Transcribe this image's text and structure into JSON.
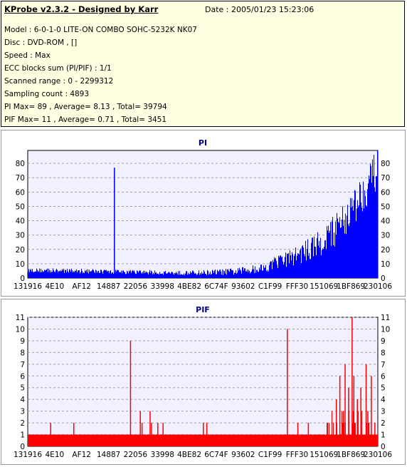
{
  "app": {
    "title": "KProbe v2.3.2 - Designed by Karr",
    "date": "Date : 2005/01/23 15:23:06"
  },
  "info_lines": [
    "Model : 6-0-1-0 LITE-ON COMBO SOHC-5232K NK07",
    "Disc : DVD-ROM ,  []",
    "Speed : Max",
    "ECC blocks sum (PI/PIF) : 1/1",
    "Scanned range : 0 - 2299312",
    "Sampling count : 4893",
    "PI Max= 89 , Average= 8.13 , Total= 39794",
    "PIF Max= 11 , Average= 0.71 , Total= 3451"
  ],
  "colors": {
    "pi_bar": "#0000ff",
    "pif_bar": "#ff0000",
    "plot_bg": "#f0f0ff",
    "grid": "#a0a0a0",
    "title_text": "#000080",
    "info_bg": "#ffffe1"
  },
  "chart_data": [
    {
      "type": "bar",
      "title": "PI",
      "xlabel": "",
      "ylabel": "",
      "x_tick_labels": [
        "131916",
        "4E10",
        "AF12",
        "14887",
        "22056",
        "33998",
        "4BE82",
        "6C74F",
        "93602",
        "C1F99",
        "FFF30",
        "151069",
        "1BF869",
        "230106"
      ],
      "y_ticks": [
        0,
        10,
        20,
        30,
        40,
        50,
        60,
        70,
        80
      ],
      "ylim": [
        0,
        89
      ],
      "grid": true,
      "right_axis": true,
      "spikes": [
        {
          "position_fraction": 0.246,
          "value": 77
        }
      ],
      "profile": [
        {
          "fraction": 0.0,
          "base": 4,
          "peak": 7
        },
        {
          "fraction": 0.2,
          "base": 3,
          "peak": 6
        },
        {
          "fraction": 0.45,
          "base": 2,
          "peak": 5
        },
        {
          "fraction": 0.6,
          "base": 2,
          "peak": 7
        },
        {
          "fraction": 0.68,
          "base": 4,
          "peak": 11
        },
        {
          "fraction": 0.75,
          "base": 8,
          "peak": 20
        },
        {
          "fraction": 0.82,
          "base": 13,
          "peak": 30
        },
        {
          "fraction": 0.88,
          "base": 22,
          "peak": 45
        },
        {
          "fraction": 0.93,
          "base": 35,
          "peak": 62
        },
        {
          "fraction": 0.97,
          "base": 50,
          "peak": 80
        },
        {
          "fraction": 1.0,
          "base": 62,
          "peak": 89
        }
      ]
    },
    {
      "type": "bar",
      "title": "PIF",
      "xlabel": "",
      "ylabel": "",
      "x_tick_labels": [
        "131916",
        "4E10",
        "AF12",
        "14887",
        "22056",
        "33998",
        "4BE82",
        "6C74F",
        "93602",
        "C1F99",
        "FFF30",
        "151069",
        "1BF869",
        "230106"
      ],
      "y_ticks": [
        0,
        1,
        2,
        3,
        4,
        5,
        6,
        7,
        8,
        9,
        10,
        11
      ],
      "ylim": [
        0,
        11
      ],
      "grid": true,
      "right_axis": true,
      "baseline_value": 1,
      "spikes": [
        {
          "position_fraction": 0.064,
          "value": 2
        },
        {
          "position_fraction": 0.13,
          "value": 2
        },
        {
          "position_fraction": 0.292,
          "value": 9
        },
        {
          "position_fraction": 0.32,
          "value": 3
        },
        {
          "position_fraction": 0.325,
          "value": 2
        },
        {
          "position_fraction": 0.348,
          "value": 3
        },
        {
          "position_fraction": 0.352,
          "value": 2
        },
        {
          "position_fraction": 0.37,
          "value": 2
        },
        {
          "position_fraction": 0.385,
          "value": 2
        },
        {
          "position_fraction": 0.5,
          "value": 2
        },
        {
          "position_fraction": 0.51,
          "value": 2
        },
        {
          "position_fraction": 0.74,
          "value": 10
        },
        {
          "position_fraction": 0.77,
          "value": 2
        },
        {
          "position_fraction": 0.8,
          "value": 2
        },
        {
          "position_fraction": 0.88,
          "value": 4
        },
        {
          "position_fraction": 0.89,
          "value": 6
        },
        {
          "position_fraction": 0.9,
          "value": 3
        },
        {
          "position_fraction": 0.905,
          "value": 7
        },
        {
          "position_fraction": 0.915,
          "value": 5
        },
        {
          "position_fraction": 0.925,
          "value": 11
        },
        {
          "position_fraction": 0.93,
          "value": 6
        },
        {
          "position_fraction": 0.94,
          "value": 4
        },
        {
          "position_fraction": 0.95,
          "value": 5
        },
        {
          "position_fraction": 0.965,
          "value": 7
        },
        {
          "position_fraction": 0.97,
          "value": 3
        },
        {
          "position_fraction": 0.98,
          "value": 6
        },
        {
          "position_fraction": 0.99,
          "value": 2
        }
      ]
    }
  ]
}
